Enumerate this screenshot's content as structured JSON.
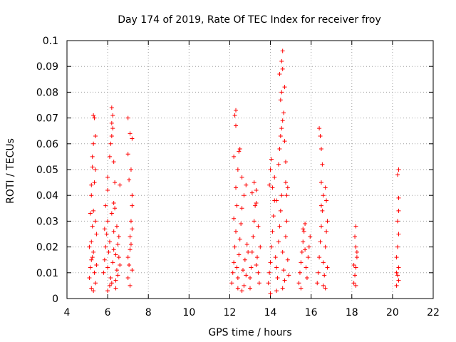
{
  "chart_data": {
    "type": "scatter",
    "title": "Day 174 of 2019, Rate Of TEC Index for receiver froy",
    "xlabel": "GPS time / hours",
    "ylabel": "ROTI / TECUs",
    "xlim": [
      4,
      22
    ],
    "ylim": [
      0,
      0.1
    ],
    "xticks": [
      4,
      6,
      8,
      10,
      12,
      14,
      16,
      18,
      20,
      22
    ],
    "xtick_labels": [
      "4",
      "6",
      "8",
      "10",
      "12",
      "14",
      "16",
      "18",
      "20",
      "22"
    ],
    "yticks": [
      0,
      0.01,
      0.02,
      0.03,
      0.04,
      0.05,
      0.06,
      0.07,
      0.08,
      0.09,
      0.1
    ],
    "ytick_labels": [
      "0",
      "0.01",
      "0.02",
      "0.03",
      "0.04",
      "0.05",
      "0.06",
      "0.07",
      "0.08",
      "0.09",
      "0.1"
    ],
    "grid": true,
    "marker": "+",
    "marker_color": "#ff0000",
    "series": [
      {
        "name": "ROTI",
        "points": [
          [
            5.1,
            0.008
          ],
          [
            5.15,
            0.012
          ],
          [
            5.2,
            0.015
          ],
          [
            5.2,
            0.022
          ],
          [
            5.25,
            0.028
          ],
          [
            5.3,
            0.034
          ],
          [
            5.3,
            0.018
          ],
          [
            5.35,
            0.01
          ],
          [
            5.4,
            0.006
          ],
          [
            5.45,
            0.025
          ],
          [
            5.2,
            0.044
          ],
          [
            5.25,
            0.051
          ],
          [
            5.3,
            0.06
          ],
          [
            5.35,
            0.07
          ],
          [
            5.3,
            0.071
          ],
          [
            5.4,
            0.063
          ],
          [
            5.25,
            0.055
          ],
          [
            5.2,
            0.04
          ],
          [
            5.15,
            0.033
          ],
          [
            5.35,
            0.045
          ],
          [
            5.4,
            0.05
          ],
          [
            5.1,
            0.02
          ],
          [
            5.2,
            0.004
          ],
          [
            5.45,
            0.013
          ],
          [
            5.3,
            0.003
          ],
          [
            5.25,
            0.016
          ],
          [
            5.4,
            0.03
          ],
          [
            5.8,
            0.01
          ],
          [
            5.85,
            0.015
          ],
          [
            5.9,
            0.02
          ],
          [
            5.95,
            0.025
          ],
          [
            6.0,
            0.03
          ],
          [
            6.0,
            0.012
          ],
          [
            6.05,
            0.018
          ],
          [
            6.1,
            0.022
          ],
          [
            6.15,
            0.008
          ],
          [
            6.2,
            0.006
          ],
          [
            6.25,
            0.014
          ],
          [
            6.3,
            0.026
          ],
          [
            6.35,
            0.035
          ],
          [
            6.4,
            0.017
          ],
          [
            6.45,
            0.011
          ],
          [
            6.5,
            0.009
          ],
          [
            6.55,
            0.016
          ],
          [
            6.6,
            0.013
          ],
          [
            5.9,
            0.036
          ],
          [
            6.0,
            0.042
          ],
          [
            6.0,
            0.047
          ],
          [
            6.1,
            0.055
          ],
          [
            6.15,
            0.06
          ],
          [
            6.2,
            0.068
          ],
          [
            6.2,
            0.074
          ],
          [
            6.25,
            0.071
          ],
          [
            6.2,
            0.063
          ],
          [
            6.25,
            0.066
          ],
          [
            6.3,
            0.053
          ],
          [
            6.35,
            0.045
          ],
          [
            6.3,
            0.037
          ],
          [
            6.2,
            0.033
          ],
          [
            6.1,
            0.005
          ],
          [
            6.4,
            0.004
          ],
          [
            6.45,
            0.028
          ],
          [
            6.5,
            0.021
          ],
          [
            6.6,
            0.044
          ],
          [
            6.0,
            0.003
          ],
          [
            6.3,
            0.019
          ],
          [
            5.85,
            0.027
          ],
          [
            6.4,
            0.007
          ],
          [
            6.55,
            0.024
          ],
          [
            7.0,
            0.008
          ],
          [
            7.05,
            0.013
          ],
          [
            7.1,
            0.019
          ],
          [
            7.1,
            0.024
          ],
          [
            7.15,
            0.03
          ],
          [
            7.2,
            0.036
          ],
          [
            7.2,
            0.011
          ],
          [
            7.0,
            0.016
          ],
          [
            7.0,
            0.07
          ],
          [
            7.1,
            0.064
          ],
          [
            7.2,
            0.062
          ],
          [
            7.15,
            0.05
          ],
          [
            7.0,
            0.056
          ],
          [
            7.05,
            0.046
          ],
          [
            7.2,
            0.04
          ],
          [
            7.1,
            0.005
          ],
          [
            7.2,
            0.027
          ],
          [
            7.15,
            0.021
          ],
          [
            12.1,
            0.006
          ],
          [
            12.15,
            0.01
          ],
          [
            12.2,
            0.014
          ],
          [
            12.25,
            0.02
          ],
          [
            12.3,
            0.026
          ],
          [
            12.35,
            0.012
          ],
          [
            12.4,
            0.008
          ],
          [
            12.45,
            0.017
          ],
          [
            12.5,
            0.023
          ],
          [
            12.55,
            0.029
          ],
          [
            12.6,
            0.035
          ],
          [
            12.65,
            0.011
          ],
          [
            12.7,
            0.005
          ],
          [
            12.75,
            0.015
          ],
          [
            12.8,
            0.009
          ],
          [
            12.85,
            0.021
          ],
          [
            12.9,
            0.018
          ],
          [
            12.2,
            0.031
          ],
          [
            12.3,
            0.043
          ],
          [
            12.35,
            0.036
          ],
          [
            12.4,
            0.05
          ],
          [
            12.45,
            0.057
          ],
          [
            12.5,
            0.058
          ],
          [
            12.3,
            0.067
          ],
          [
            12.25,
            0.071
          ],
          [
            12.3,
            0.073
          ],
          [
            12.2,
            0.055
          ],
          [
            12.6,
            0.047
          ],
          [
            12.7,
            0.04
          ],
          [
            12.6,
            0.003
          ],
          [
            12.8,
            0.044
          ],
          [
            12.4,
            0.004
          ],
          [
            13.0,
            0.008
          ],
          [
            13.05,
            0.012
          ],
          [
            13.1,
            0.018
          ],
          [
            13.15,
            0.024
          ],
          [
            13.2,
            0.03
          ],
          [
            13.25,
            0.036
          ],
          [
            13.3,
            0.042
          ],
          [
            13.35,
            0.016
          ],
          [
            13.4,
            0.01
          ],
          [
            13.45,
            0.006
          ],
          [
            13.5,
            0.02
          ],
          [
            13.2,
            0.045
          ],
          [
            13.3,
            0.037
          ],
          [
            13.1,
            0.041
          ],
          [
            13.4,
            0.028
          ],
          [
            13.0,
            0.004
          ],
          [
            13.3,
            0.013
          ],
          [
            13.9,
            0.006
          ],
          [
            13.95,
            0.01
          ],
          [
            14.0,
            0.014
          ],
          [
            14.05,
            0.02
          ],
          [
            14.1,
            0.026
          ],
          [
            14.15,
            0.032
          ],
          [
            14.2,
            0.038
          ],
          [
            14.25,
            0.016
          ],
          [
            14.3,
            0.012
          ],
          [
            14.35,
            0.008
          ],
          [
            14.4,
            0.022
          ],
          [
            14.45,
            0.028
          ],
          [
            14.5,
            0.034
          ],
          [
            14.55,
            0.04
          ],
          [
            14.6,
            0.018
          ],
          [
            14.65,
            0.011
          ],
          [
            14.7,
            0.007
          ],
          [
            14.75,
            0.024
          ],
          [
            14.8,
            0.03
          ],
          [
            14.85,
            0.015
          ],
          [
            14.9,
            0.009
          ],
          [
            13.95,
            0.044
          ],
          [
            14.0,
            0.05
          ],
          [
            14.05,
            0.054
          ],
          [
            14.1,
            0.043
          ],
          [
            14.2,
            0.047
          ],
          [
            14.3,
            0.038
          ],
          [
            14.4,
            0.052
          ],
          [
            14.45,
            0.058
          ],
          [
            14.5,
            0.063
          ],
          [
            14.55,
            0.066
          ],
          [
            14.6,
            0.069
          ],
          [
            14.5,
            0.077
          ],
          [
            14.55,
            0.08
          ],
          [
            14.45,
            0.087
          ],
          [
            14.6,
            0.089
          ],
          [
            14.55,
            0.092
          ],
          [
            14.6,
            0.096
          ],
          [
            14.7,
            0.082
          ],
          [
            14.65,
            0.072
          ],
          [
            14.7,
            0.061
          ],
          [
            14.75,
            0.053
          ],
          [
            14.75,
            0.045
          ],
          [
            14.8,
            0.04
          ],
          [
            14.85,
            0.043
          ],
          [
            14.6,
            0.004
          ],
          [
            14.3,
            0.003
          ],
          [
            14.0,
            0.002
          ],
          [
            15.4,
            0.006
          ],
          [
            15.45,
            0.01
          ],
          [
            15.5,
            0.014
          ],
          [
            15.55,
            0.018
          ],
          [
            15.6,
            0.022
          ],
          [
            15.65,
            0.026
          ],
          [
            15.7,
            0.029
          ],
          [
            15.75,
            0.012
          ],
          [
            15.8,
            0.008
          ],
          [
            15.85,
            0.016
          ],
          [
            15.9,
            0.02
          ],
          [
            15.95,
            0.024
          ],
          [
            15.5,
            0.004
          ],
          [
            15.6,
            0.027
          ],
          [
            15.7,
            0.019
          ],
          [
            16.3,
            0.006
          ],
          [
            16.35,
            0.01
          ],
          [
            16.4,
            0.016
          ],
          [
            16.45,
            0.022
          ],
          [
            16.5,
            0.028
          ],
          [
            16.55,
            0.034
          ],
          [
            16.6,
            0.014
          ],
          [
            16.65,
            0.009
          ],
          [
            16.7,
            0.02
          ],
          [
            16.75,
            0.026
          ],
          [
            16.8,
            0.012
          ],
          [
            16.4,
            0.066
          ],
          [
            16.45,
            0.063
          ],
          [
            16.5,
            0.058
          ],
          [
            16.55,
            0.052
          ],
          [
            16.5,
            0.045
          ],
          [
            16.6,
            0.04
          ],
          [
            16.7,
            0.043
          ],
          [
            16.75,
            0.038
          ],
          [
            16.8,
            0.03
          ],
          [
            16.6,
            0.005
          ],
          [
            16.7,
            0.004
          ],
          [
            16.5,
            0.036
          ],
          [
            18.1,
            0.006
          ],
          [
            18.15,
            0.009
          ],
          [
            18.2,
            0.012
          ],
          [
            18.25,
            0.016
          ],
          [
            18.2,
            0.02
          ],
          [
            18.15,
            0.024
          ],
          [
            18.2,
            0.028
          ],
          [
            18.25,
            0.018
          ],
          [
            18.1,
            0.013
          ],
          [
            18.2,
            0.005
          ],
          [
            20.2,
            0.005
          ],
          [
            20.25,
            0.009
          ],
          [
            20.3,
            0.012
          ],
          [
            20.2,
            0.016
          ],
          [
            20.25,
            0.02
          ],
          [
            20.3,
            0.025
          ],
          [
            20.25,
            0.03
          ],
          [
            20.3,
            0.034
          ],
          [
            20.3,
            0.039
          ],
          [
            20.25,
            0.048
          ],
          [
            20.3,
            0.05
          ],
          [
            20.2,
            0.01
          ],
          [
            20.3,
            0.007
          ]
        ]
      }
    ]
  }
}
